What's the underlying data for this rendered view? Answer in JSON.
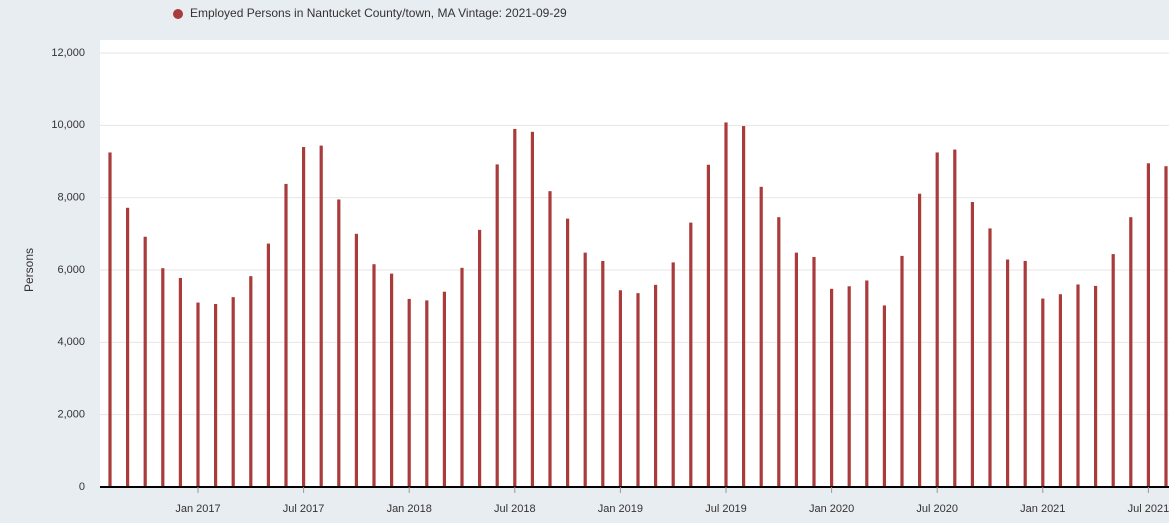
{
  "chart_data": {
    "type": "bar",
    "series": [
      {
        "name": "Employed Persons in Nantucket County/town, MA Vintage: 2021-09-29",
        "color": "#a93b3b",
        "values": [
          9250,
          7720,
          6920,
          6050,
          5780,
          5100,
          5060,
          5250,
          5830,
          6730,
          8380,
          9400,
          9440,
          7950,
          7000,
          6160,
          5900,
          5200,
          5160,
          5400,
          6060,
          7110,
          8920,
          9900,
          9820,
          8180,
          7420,
          6480,
          6250,
          5440,
          5360,
          5590,
          6210,
          7310,
          8910,
          10080,
          9980,
          8300,
          7460,
          6480,
          6360,
          5480,
          5550,
          5710,
          5020,
          6390,
          8110,
          9250,
          9330,
          7880,
          7150,
          6290,
          6250,
          5210,
          5330,
          5600,
          5560,
          6440,
          7460,
          8950,
          8870
        ]
      }
    ],
    "x": [
      "2016-08",
      "2016-09",
      "2016-10",
      "2016-11",
      "2016-12",
      "2017-01",
      "2017-02",
      "2017-03",
      "2017-04",
      "2017-05",
      "2017-06",
      "2017-07",
      "2017-08",
      "2017-09",
      "2017-10",
      "2017-11",
      "2017-12",
      "2018-01",
      "2018-02",
      "2018-03",
      "2018-04",
      "2018-05",
      "2018-06",
      "2018-07",
      "2018-08",
      "2018-09",
      "2018-10",
      "2018-11",
      "2018-12",
      "2019-01",
      "2019-02",
      "2019-03",
      "2019-04",
      "2019-05",
      "2019-06",
      "2019-07",
      "2019-08",
      "2019-09",
      "2019-10",
      "2019-11",
      "2019-12",
      "2020-01",
      "2020-02",
      "2020-03",
      "2020-04",
      "2020-05",
      "2020-06",
      "2020-07",
      "2020-08",
      "2020-09",
      "2020-10",
      "2020-11",
      "2020-12",
      "2021-01",
      "2021-02",
      "2021-03",
      "2021-04",
      "2021-05",
      "2021-06",
      "2021-07",
      "2021-08"
    ],
    "xticks": [
      {
        "value": "2017-01",
        "label": "Jan 2017"
      },
      {
        "value": "2017-07",
        "label": "Jul 2017"
      },
      {
        "value": "2018-01",
        "label": "Jan 2018"
      },
      {
        "value": "2018-07",
        "label": "Jul 2018"
      },
      {
        "value": "2019-01",
        "label": "Jan 2019"
      },
      {
        "value": "2019-07",
        "label": "Jul 2019"
      },
      {
        "value": "2020-01",
        "label": "Jan 2020"
      },
      {
        "value": "2020-07",
        "label": "Jul 2020"
      },
      {
        "value": "2021-01",
        "label": "Jan 2021"
      },
      {
        "value": "2021-07",
        "label": "Jul 2021"
      }
    ],
    "ylabel": "Persons",
    "ylim": [
      0,
      12000
    ],
    "yticks": [
      0,
      {
        "value": 2000,
        "label": "2,000"
      },
      {
        "value": 4000,
        "label": "4,000"
      },
      {
        "value": 6000,
        "label": "6,000"
      },
      {
        "value": 8000,
        "label": "8,000"
      },
      {
        "value": 10000,
        "label": "10,000"
      },
      {
        "value": 12000,
        "label": "12,000"
      }
    ],
    "grid": true
  }
}
